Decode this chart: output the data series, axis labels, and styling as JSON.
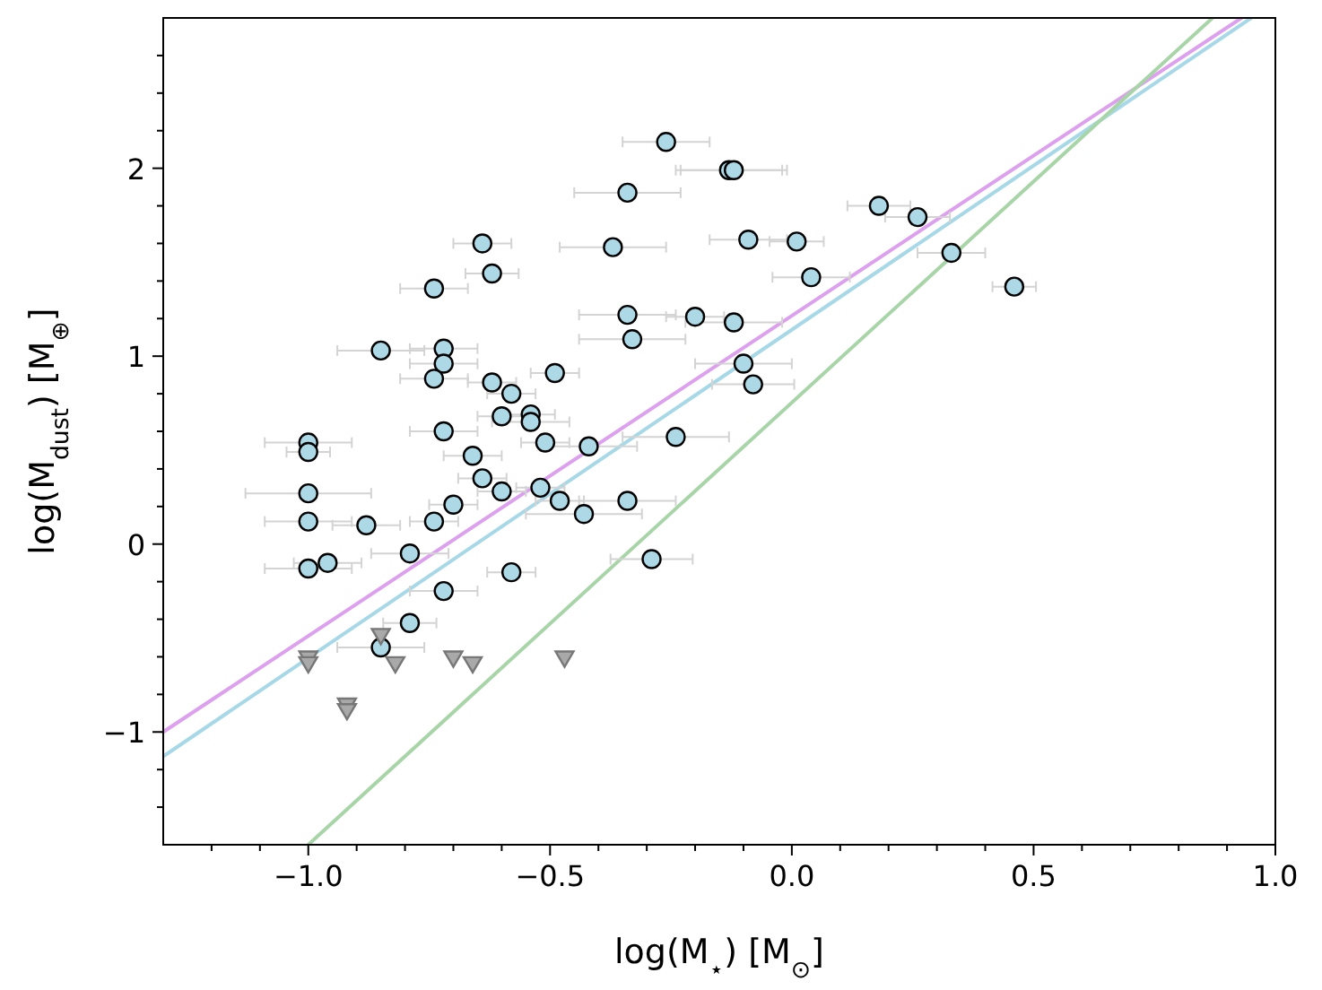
{
  "chart_data": {
    "type": "scatter",
    "xlabel": "log(M$_{⋆}$) [M$_{⊙}$]",
    "ylabel": "log(M$_{dust}$) [M$_{⊕}$]",
    "xlim": [
      -1.3,
      1.0
    ],
    "ylim": [
      -1.6,
      2.8
    ],
    "xticks": [
      {
        "value": -1.2,
        "label": null
      },
      {
        "value": -1.1,
        "label": null
      },
      {
        "value": -1.0,
        "label": "−1.0"
      },
      {
        "value": -0.9,
        "label": null
      },
      {
        "value": -0.8,
        "label": null
      },
      {
        "value": -0.7,
        "label": null
      },
      {
        "value": -0.6,
        "label": null
      },
      {
        "value": -0.5,
        "label": "−0.5"
      },
      {
        "value": -0.4,
        "label": null
      },
      {
        "value": -0.3,
        "label": null
      },
      {
        "value": -0.2,
        "label": null
      },
      {
        "value": -0.1,
        "label": null
      },
      {
        "value": 0.0,
        "label": "0.0"
      },
      {
        "value": 0.1,
        "label": null
      },
      {
        "value": 0.2,
        "label": null
      },
      {
        "value": 0.3,
        "label": null
      },
      {
        "value": 0.4,
        "label": null
      },
      {
        "value": 0.5,
        "label": "0.5"
      },
      {
        "value": 0.6,
        "label": null
      },
      {
        "value": 0.7,
        "label": null
      },
      {
        "value": 0.8,
        "label": null
      },
      {
        "value": 0.9,
        "label": null
      },
      {
        "value": 1.0,
        "label": "1.0"
      }
    ],
    "yticks": [
      {
        "value": -1.4,
        "label": null
      },
      {
        "value": -1.2,
        "label": null
      },
      {
        "value": -1,
        "label": "−1"
      },
      {
        "value": -0.8,
        "label": null
      },
      {
        "value": -0.6,
        "label": null
      },
      {
        "value": -0.4,
        "label": null
      },
      {
        "value": -0.2,
        "label": null
      },
      {
        "value": 0,
        "label": "0"
      },
      {
        "value": 0.2,
        "label": null
      },
      {
        "value": 0.4,
        "label": null
      },
      {
        "value": 0.6,
        "label": null
      },
      {
        "value": 0.8,
        "label": null
      },
      {
        "value": 1,
        "label": "1"
      },
      {
        "value": 1.2,
        "label": null
      },
      {
        "value": 1.4,
        "label": null
      },
      {
        "value": 1.6,
        "label": null
      },
      {
        "value": 1.8,
        "label": null
      },
      {
        "value": 2,
        "label": "2"
      },
      {
        "value": 2.2,
        "label": null
      },
      {
        "value": 2.4,
        "label": null
      },
      {
        "value": 2.6,
        "label": null
      }
    ],
    "grid": false,
    "series": [
      {
        "type": "line",
        "color": "#dda0ee",
        "x": [
          -1.3,
          0.93
        ],
        "values": [
          -1.0,
          2.8
        ],
        "line_style": "solid"
      },
      {
        "type": "line",
        "color": "#a6d8e8",
        "x": [
          -1.3,
          0.95
        ],
        "values": [
          -1.13,
          2.8
        ],
        "line_style": "solid"
      },
      {
        "type": "line",
        "color": "#a8d5a8",
        "x": [
          -1.0,
          0.87
        ],
        "values": [
          -1.6,
          2.8
        ],
        "line_style": "solid"
      },
      {
        "color": "#add8e6",
        "marker": "circle",
        "x": [
          -0.64,
          -0.62,
          -0.74,
          -0.85,
          -0.72,
          -0.72,
          -0.74,
          -0.62,
          -0.58,
          -0.49,
          -0.6,
          -0.54,
          -0.54,
          -0.72,
          -0.51,
          -1.0,
          -1.0,
          -0.66,
          -0.26,
          -0.13,
          -0.12,
          -0.34,
          0.18,
          0.26,
          -0.09,
          0.01,
          -0.37,
          0.33,
          0.04,
          0.46,
          -0.34,
          -0.2,
          -0.12,
          -0.33,
          -0.1,
          -0.08,
          -0.24,
          -0.42,
          -0.64,
          -0.6,
          -0.52,
          -0.7,
          -0.74,
          -1.0,
          -1.0,
          -0.88,
          -0.79,
          -1.0,
          -0.96,
          -0.58,
          -0.72,
          -0.79,
          -0.85,
          -0.48,
          -0.34,
          -0.43,
          -0.29
        ],
        "values": [
          1.6,
          1.44,
          1.36,
          1.03,
          1.04,
          0.96,
          0.88,
          0.86,
          0.8,
          0.91,
          0.68,
          0.69,
          0.65,
          0.6,
          0.54,
          0.54,
          0.49,
          0.47,
          2.14,
          1.99,
          1.99,
          1.87,
          1.8,
          1.74,
          1.62,
          1.61,
          1.58,
          1.55,
          1.42,
          1.37,
          1.22,
          1.21,
          1.18,
          1.09,
          0.96,
          0.85,
          0.57,
          0.52,
          0.35,
          0.28,
          0.3,
          0.21,
          0.12,
          0.27,
          0.12,
          0.1,
          -0.05,
          -0.13,
          -0.1,
          -0.15,
          -0.25,
          -0.42,
          -0.55,
          0.23,
          0.23,
          0.16,
          -0.08
        ],
        "xerrors": [
          0.06,
          0.055,
          0.07,
          0.09,
          0.07,
          0.07,
          0.07,
          0.05,
          0.05,
          0.05,
          0.05,
          0.05,
          0.08,
          0.07,
          0.05,
          0.09,
          0.045,
          0.06,
          0.09,
          0.11,
          0.11,
          0.11,
          0.065,
          0.067,
          0.08,
          0.056,
          0.11,
          0.07,
          0.08,
          0.045,
          0.1,
          0.06,
          0.1,
          0.11,
          0.1,
          0.085,
          0.11,
          0.1,
          0.05,
          0.05,
          0.05,
          0.05,
          0.05,
          0.13,
          0.09,
          0.07,
          0.08,
          0.09,
          0.07,
          0.05,
          0.07,
          0.055,
          0.09,
          0.05,
          0.1,
          0.12,
          0.085
        ]
      },
      {
        "color": "#a9a9a9",
        "marker": "triangle",
        "x": [
          -1.0,
          -1.0,
          -0.85,
          -0.82,
          -0.7,
          -0.66,
          -0.92,
          -0.92,
          -0.47
        ],
        "values": [
          -0.61,
          -0.64,
          -0.49,
          -0.64,
          -0.61,
          -0.64,
          -0.86,
          -0.89,
          -0.61
        ]
      }
    ]
  }
}
